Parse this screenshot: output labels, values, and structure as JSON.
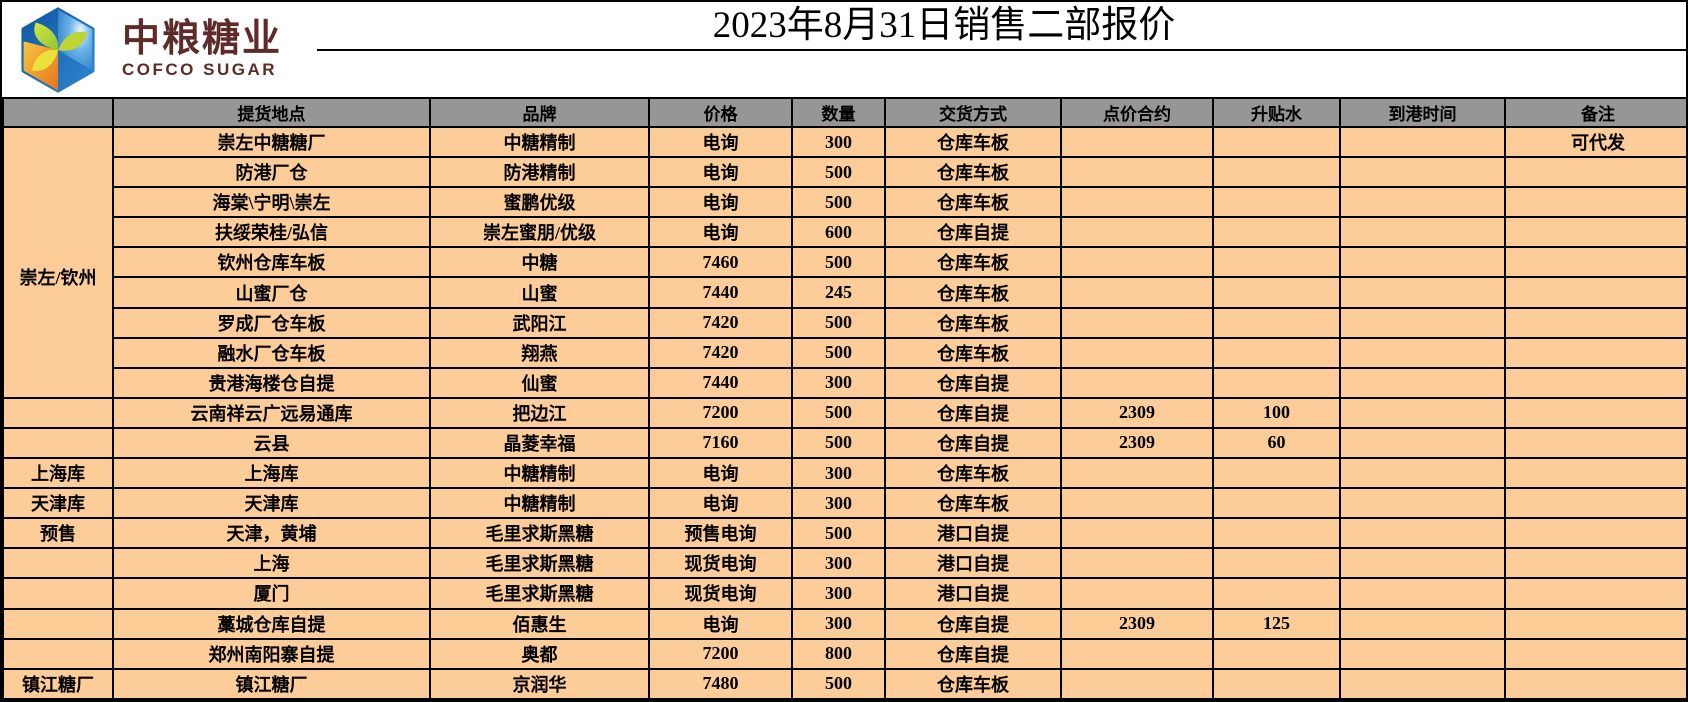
{
  "logo": {
    "cn": "中粮糖业",
    "en": "COFCO SUGAR",
    "icon": "cofco-cube-logo",
    "text_color": "#5e2b28"
  },
  "title": "2023年8月31日销售二部报价",
  "colors": {
    "header_bg": "#969696",
    "row_bg": "#fccc99",
    "region_text": "#ff0000",
    "border": "#000000"
  },
  "table": {
    "columns": [
      "",
      "提货地点",
      "品牌",
      "价格",
      "数量",
      "交货方式",
      "点价合约",
      "升贴水",
      "到港时间",
      "备注"
    ],
    "rows": [
      {
        "region": "崇左/钦州",
        "region_rowspan": 9,
        "location": "崇左中糖糖厂",
        "brand": "中糖精制",
        "price": "电询",
        "qty": "300",
        "delivery": "仓库车板",
        "contract": "",
        "premium": "",
        "arrival": "",
        "remark": "可代发"
      },
      {
        "region": null,
        "location": "防港厂仓",
        "brand": "防港精制",
        "price": "电询",
        "qty": "500",
        "delivery": "仓库车板",
        "contract": "",
        "premium": "",
        "arrival": "",
        "remark": ""
      },
      {
        "region": null,
        "location": "海棠\\宁明\\崇左",
        "brand": "蜜鹏优级",
        "price": "电询",
        "qty": "500",
        "delivery": "仓库车板",
        "contract": "",
        "premium": "",
        "arrival": "",
        "remark": ""
      },
      {
        "region": null,
        "location": "扶绥荣桂/弘信",
        "brand": "崇左蜜朋/优级",
        "price": "电询",
        "qty": "600",
        "delivery": "仓库自提",
        "contract": "",
        "premium": "",
        "arrival": "",
        "remark": ""
      },
      {
        "region": null,
        "location": "钦州仓库车板",
        "brand": "中糖",
        "price": "7460",
        "qty": "500",
        "delivery": "仓库车板",
        "contract": "",
        "premium": "",
        "arrival": "",
        "remark": ""
      },
      {
        "region": null,
        "location": "山蜜厂仓",
        "brand": "山蜜",
        "price": "7440",
        "qty": "245",
        "delivery": "仓库车板",
        "contract": "",
        "premium": "",
        "arrival": "",
        "remark": ""
      },
      {
        "region": null,
        "location": "罗成厂仓车板",
        "brand": "武阳江",
        "price": "7420",
        "qty": "500",
        "delivery": "仓库车板",
        "contract": "",
        "premium": "",
        "arrival": "",
        "remark": ""
      },
      {
        "region": null,
        "location": "融水厂仓车板",
        "brand": "翔燕",
        "price": "7420",
        "qty": "500",
        "delivery": "仓库车板",
        "contract": "",
        "premium": "",
        "arrival": "",
        "remark": ""
      },
      {
        "region": null,
        "location": "贵港海楼仓自提",
        "brand": "仙蜜",
        "price": "7440",
        "qty": "300",
        "delivery": "仓库自提",
        "contract": "",
        "premium": "",
        "arrival": "",
        "remark": ""
      },
      {
        "region": "",
        "location": "云南祥云广远易通库",
        "brand": "把边江",
        "price": "7200",
        "qty": "500",
        "delivery": "仓库自提",
        "contract": "2309",
        "premium": "100",
        "arrival": "",
        "remark": ""
      },
      {
        "region": "",
        "location": "云县",
        "brand": "晶菱幸福",
        "price": "7160",
        "qty": "500",
        "delivery": "仓库自提",
        "contract": "2309",
        "premium": "60",
        "arrival": "",
        "remark": ""
      },
      {
        "region": "上海库",
        "location": "上海库",
        "brand": "中糖精制",
        "price": "电询",
        "qty": "300",
        "delivery": "仓库车板",
        "contract": "",
        "premium": "",
        "arrival": "",
        "remark": ""
      },
      {
        "region": "天津库",
        "location": "天津库",
        "brand": "中糖精制",
        "price": "电询",
        "qty": "300",
        "delivery": "仓库车板",
        "contract": "",
        "premium": "",
        "arrival": "",
        "remark": ""
      },
      {
        "region": "预售",
        "location": "天津，黄埔",
        "brand": "毛里求斯黑糖",
        "price": "预售电询",
        "qty": "500",
        "delivery": "港口自提",
        "contract": "",
        "premium": "",
        "arrival": "",
        "remark": ""
      },
      {
        "region": "",
        "location": "上海",
        "brand": "毛里求斯黑糖",
        "price": "现货电询",
        "qty": "300",
        "delivery": "港口自提",
        "contract": "",
        "premium": "",
        "arrival": "",
        "remark": ""
      },
      {
        "region": "",
        "location": "厦门",
        "brand": "毛里求斯黑糖",
        "price": "现货电询",
        "qty": "300",
        "delivery": "港口自提",
        "contract": "",
        "premium": "",
        "arrival": "",
        "remark": ""
      },
      {
        "region": "",
        "location": "藁城仓库自提",
        "brand": "佰惠生",
        "price": "电询",
        "qty": "300",
        "delivery": "仓库自提",
        "contract": "2309",
        "premium": "125",
        "arrival": "",
        "remark": ""
      },
      {
        "region": "",
        "location": "郑州南阳寨自提",
        "brand": "奥都",
        "price": "7200",
        "qty": "800",
        "delivery": "仓库自提",
        "contract": "",
        "premium": "",
        "arrival": "",
        "remark": ""
      },
      {
        "region": "镇江糖厂",
        "location": "镇江糖厂",
        "brand": "京润华",
        "price": "7480",
        "qty": "500",
        "delivery": "仓库车板",
        "contract": "",
        "premium": "",
        "arrival": "",
        "remark": ""
      }
    ]
  }
}
